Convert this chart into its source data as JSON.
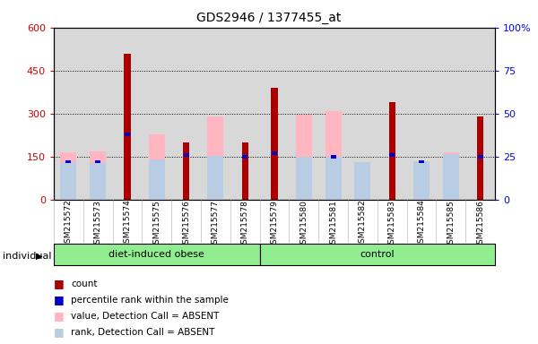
{
  "title": "GDS2946 / 1377455_at",
  "samples": [
    "GSM215572",
    "GSM215573",
    "GSM215574",
    "GSM215575",
    "GSM215576",
    "GSM215577",
    "GSM215578",
    "GSM215579",
    "GSM215580",
    "GSM215581",
    "GSM215582",
    "GSM215583",
    "GSM215584",
    "GSM215585",
    "GSM215586"
  ],
  "groups": [
    "diet-induced obese",
    "diet-induced obese",
    "diet-induced obese",
    "diet-induced obese",
    "diet-induced obese",
    "diet-induced obese",
    "diet-induced obese",
    "control",
    "control",
    "control",
    "control",
    "control",
    "control",
    "control",
    "control"
  ],
  "count": [
    0,
    0,
    510,
    0,
    200,
    0,
    200,
    390,
    0,
    0,
    0,
    340,
    0,
    0,
    290
  ],
  "percentile_rank": [
    22,
    22,
    38,
    0,
    26,
    0,
    25,
    27,
    0,
    25,
    0,
    26,
    22,
    0,
    25
  ],
  "value_absent": [
    165,
    168,
    0,
    228,
    0,
    290,
    0,
    0,
    295,
    308,
    0,
    0,
    0,
    165,
    0
  ],
  "rank_absent": [
    130,
    128,
    0,
    140,
    0,
    152,
    0,
    0,
    148,
    150,
    130,
    0,
    133,
    158,
    0
  ],
  "has_count": [
    false,
    false,
    true,
    false,
    true,
    false,
    true,
    true,
    false,
    false,
    false,
    true,
    false,
    false,
    true
  ],
  "has_rank": [
    true,
    true,
    true,
    false,
    true,
    false,
    true,
    true,
    false,
    true,
    false,
    true,
    true,
    false,
    true
  ],
  "has_value_absent": [
    true,
    true,
    false,
    true,
    false,
    true,
    false,
    false,
    true,
    true,
    false,
    false,
    false,
    true,
    false
  ],
  "has_rank_absent": [
    true,
    true,
    false,
    true,
    false,
    true,
    false,
    false,
    true,
    true,
    true,
    false,
    true,
    true,
    false
  ],
  "color_count": "#aa0000",
  "color_rank": "#0000cc",
  "color_value_absent": "#ffb6c1",
  "color_rank_absent": "#b8cce4",
  "ylim_left": [
    0,
    600
  ],
  "ylim_right": [
    0,
    100
  ],
  "yticks_left": [
    0,
    150,
    300,
    450,
    600
  ],
  "yticks_right": [
    0,
    25,
    50,
    75,
    100
  ],
  "background_color": "#d8d8d8",
  "group_spans": [
    {
      "label": "diet-induced obese",
      "start": 0,
      "end": 6
    },
    {
      "label": "control",
      "start": 7,
      "end": 14
    }
  ],
  "group_color": "#90ee90"
}
